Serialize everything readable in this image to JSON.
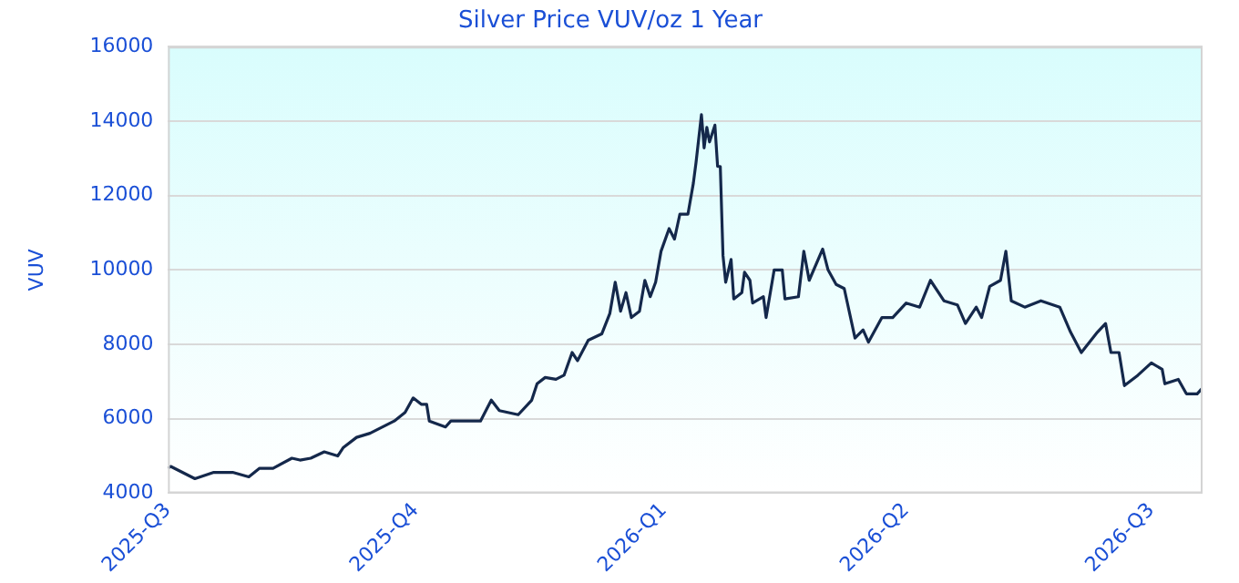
{
  "chart_data": {
    "type": "line",
    "title": "Silver Price VUV/oz 1 Year",
    "ylabel": "VUV",
    "xlim": [
      "2025-07-01",
      "2026-07-20"
    ],
    "xticks": [
      {
        "value": "2025-07-01",
        "label": "2025-Q3"
      },
      {
        "value": "2025-10-01",
        "label": "2025-Q4"
      },
      {
        "value": "2026-01-01",
        "label": "2026-Q1"
      },
      {
        "value": "2026-04-01",
        "label": "2026-Q2"
      },
      {
        "value": "2026-07-01",
        "label": "2026-Q3"
      }
    ],
    "ylim": [
      4000,
      16000
    ],
    "yticks": [
      4000,
      6000,
      8000,
      10000,
      12000,
      14000,
      16000
    ],
    "grid": "y",
    "legend": false,
    "marker": "none",
    "line_style": "solid",
    "series": [
      {
        "color": "#14284b",
        "x": [
          "2025-07-01",
          "2025-07-02",
          "2025-07-05",
          "2025-07-11",
          "2025-07-18",
          "2025-07-25",
          "2025-07-31",
          "2025-08-04",
          "2025-08-09",
          "2025-08-16",
          "2025-08-19",
          "2025-08-23",
          "2025-08-28",
          "2025-09-02",
          "2025-09-04",
          "2025-09-09",
          "2025-09-14",
          "2025-09-20",
          "2025-09-23",
          "2025-09-27",
          "2025-09-30",
          "2025-10-03",
          "2025-10-05",
          "2025-10-06",
          "2025-10-12",
          "2025-10-14",
          "2025-10-20",
          "2025-10-25",
          "2025-10-29",
          "2025-11-01",
          "2025-11-08",
          "2025-11-13",
          "2025-11-15",
          "2025-11-18",
          "2025-11-22",
          "2025-11-25",
          "2025-11-28",
          "2025-11-30",
          "2025-12-04",
          "2025-12-09",
          "2025-12-12",
          "2025-12-14",
          "2025-12-16",
          "2025-12-18",
          "2025-12-20",
          "2025-12-23",
          "2025-12-25",
          "2025-12-27",
          "2025-12-29",
          "2025-12-31",
          "2026-01-03",
          "2026-01-05",
          "2026-01-07",
          "2026-01-10",
          "2026-01-12",
          "2026-01-13",
          "2026-01-15",
          "2026-01-16",
          "2026-01-17",
          "2026-01-18",
          "2026-01-20",
          "2026-01-21",
          "2026-01-22",
          "2026-01-23",
          "2026-01-24",
          "2026-01-26",
          "2026-01-27",
          "2026-01-30",
          "2026-01-31",
          "2026-02-02",
          "2026-02-03",
          "2026-02-07",
          "2026-02-08",
          "2026-02-11",
          "2026-02-14",
          "2026-02-15",
          "2026-02-20",
          "2026-02-22",
          "2026-02-24",
          "2026-03-01",
          "2026-03-03",
          "2026-03-06",
          "2026-03-09",
          "2026-03-13",
          "2026-03-16",
          "2026-03-18",
          "2026-03-23",
          "2026-03-27",
          "2026-04-01",
          "2026-04-06",
          "2026-04-10",
          "2026-04-15",
          "2026-04-20",
          "2026-04-23",
          "2026-04-27",
          "2026-04-29",
          "2026-05-02",
          "2026-05-06",
          "2026-05-08",
          "2026-05-10",
          "2026-05-15",
          "2026-05-21",
          "2026-05-28",
          "2026-06-01",
          "2026-06-05",
          "2026-06-11",
          "2026-06-14",
          "2026-06-16",
          "2026-06-19",
          "2026-06-21",
          "2026-06-26",
          "2026-07-01",
          "2026-07-05",
          "2026-07-06",
          "2026-07-11",
          "2026-07-14",
          "2026-07-18",
          "2026-07-20"
        ],
        "values": [
          4670,
          4720,
          4610,
          4390,
          4560,
          4560,
          4440,
          4670,
          4670,
          4940,
          4890,
          4940,
          5110,
          5000,
          5220,
          5500,
          5610,
          5830,
          5940,
          6170,
          6560,
          6390,
          6390,
          5940,
          5780,
          5940,
          5940,
          5940,
          6500,
          6220,
          6110,
          6500,
          6940,
          7110,
          7060,
          7170,
          7780,
          7560,
          8110,
          8280,
          8830,
          9670,
          8890,
          9390,
          8720,
          8890,
          9720,
          9280,
          9670,
          10500,
          11110,
          10830,
          11500,
          11500,
          12330,
          12890,
          14170,
          13280,
          13830,
          13440,
          13890,
          12780,
          12780,
          10390,
          9670,
          10280,
          9220,
          9390,
          9940,
          9720,
          9110,
          9280,
          8720,
          10000,
          10000,
          9220,
          9280,
          10500,
          9720,
          10560,
          10000,
          9610,
          9500,
          8170,
          8390,
          8060,
          8720,
          8720,
          9110,
          9000,
          9720,
          9170,
          9060,
          8560,
          9000,
          8720,
          9560,
          9720,
          10500,
          9170,
          9000,
          9170,
          9000,
          8330,
          7780,
          8330,
          8560,
          7780,
          7780,
          6890,
          7170,
          7500,
          7330,
          6940,
          7060,
          6670,
          6670,
          6830
        ]
      }
    ]
  }
}
